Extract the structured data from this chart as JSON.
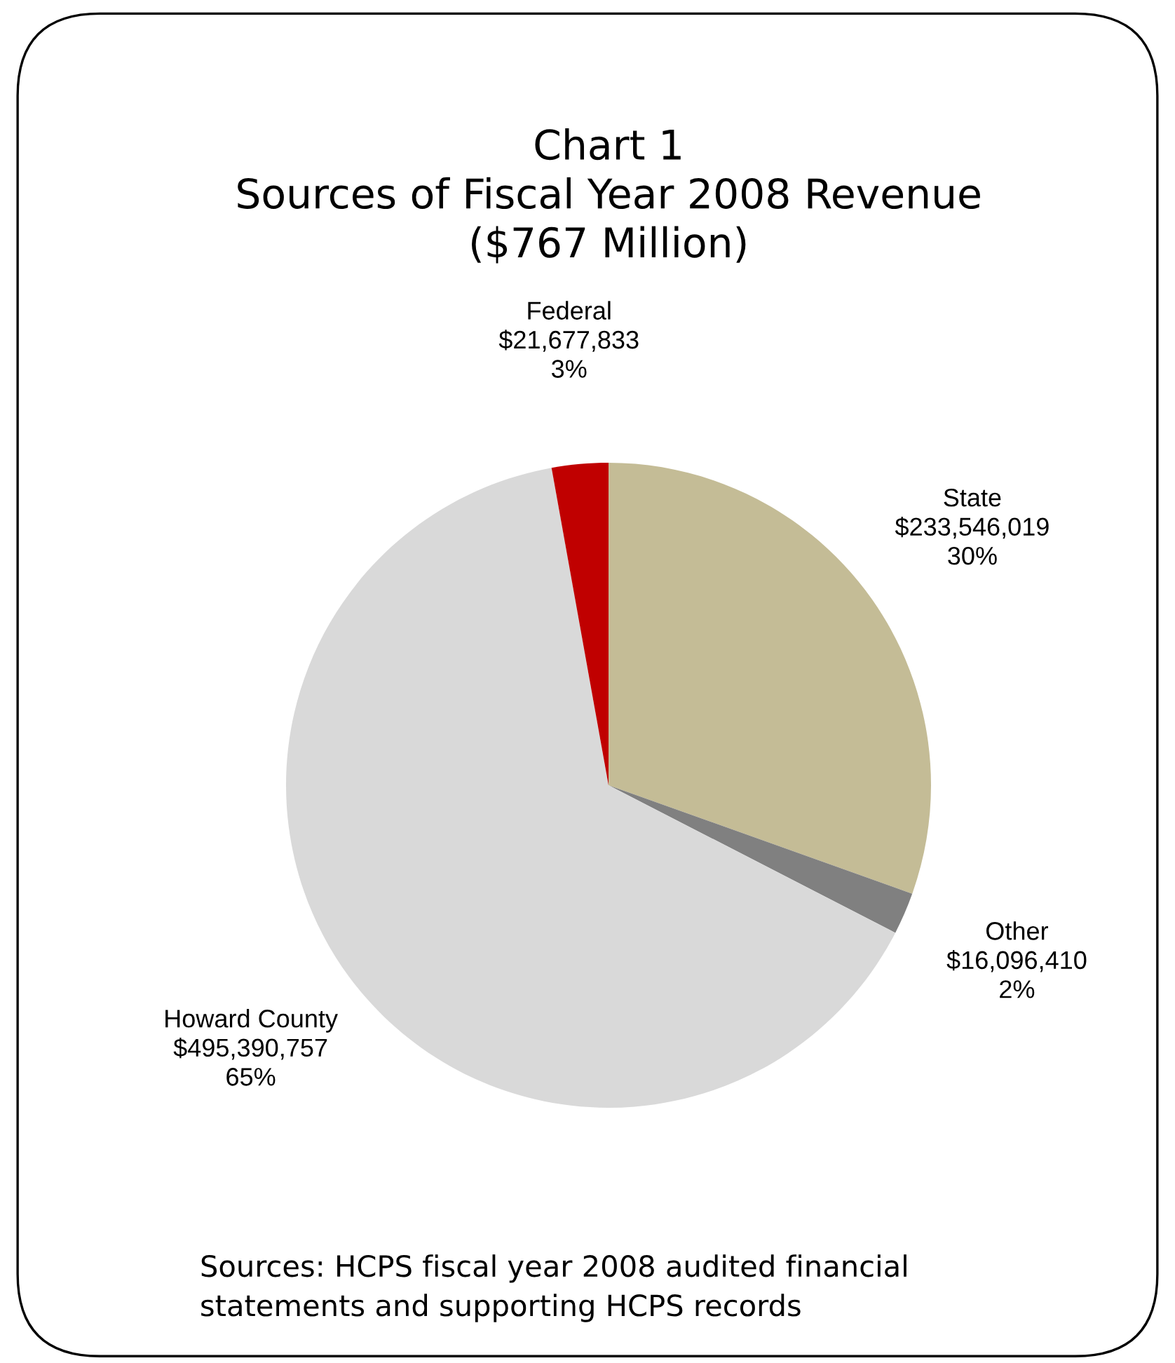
{
  "chart_data": {
    "type": "pie",
    "title": "Chart 1\nSources of Fiscal Year 2008 Revenue\n($767 Million)",
    "categories": [
      "State",
      "Other",
      "Howard County",
      "Federal"
    ],
    "values": [
      233546019,
      16096410,
      495390757,
      21677833
    ],
    "colors": [
      "#c4bc96",
      "#808080",
      "#d9d9d9",
      "#c00000"
    ],
    "value_labels": [
      "$233,546,019\n30%",
      "$16,096,410\n2%",
      "$495,390,757\n65%",
      "$21,677,833\n3%"
    ],
    "legend": false,
    "annotations": [
      "Sources: HCPS fiscal year 2008 audited financial\nstatements and supporting HCPS records"
    ]
  }
}
